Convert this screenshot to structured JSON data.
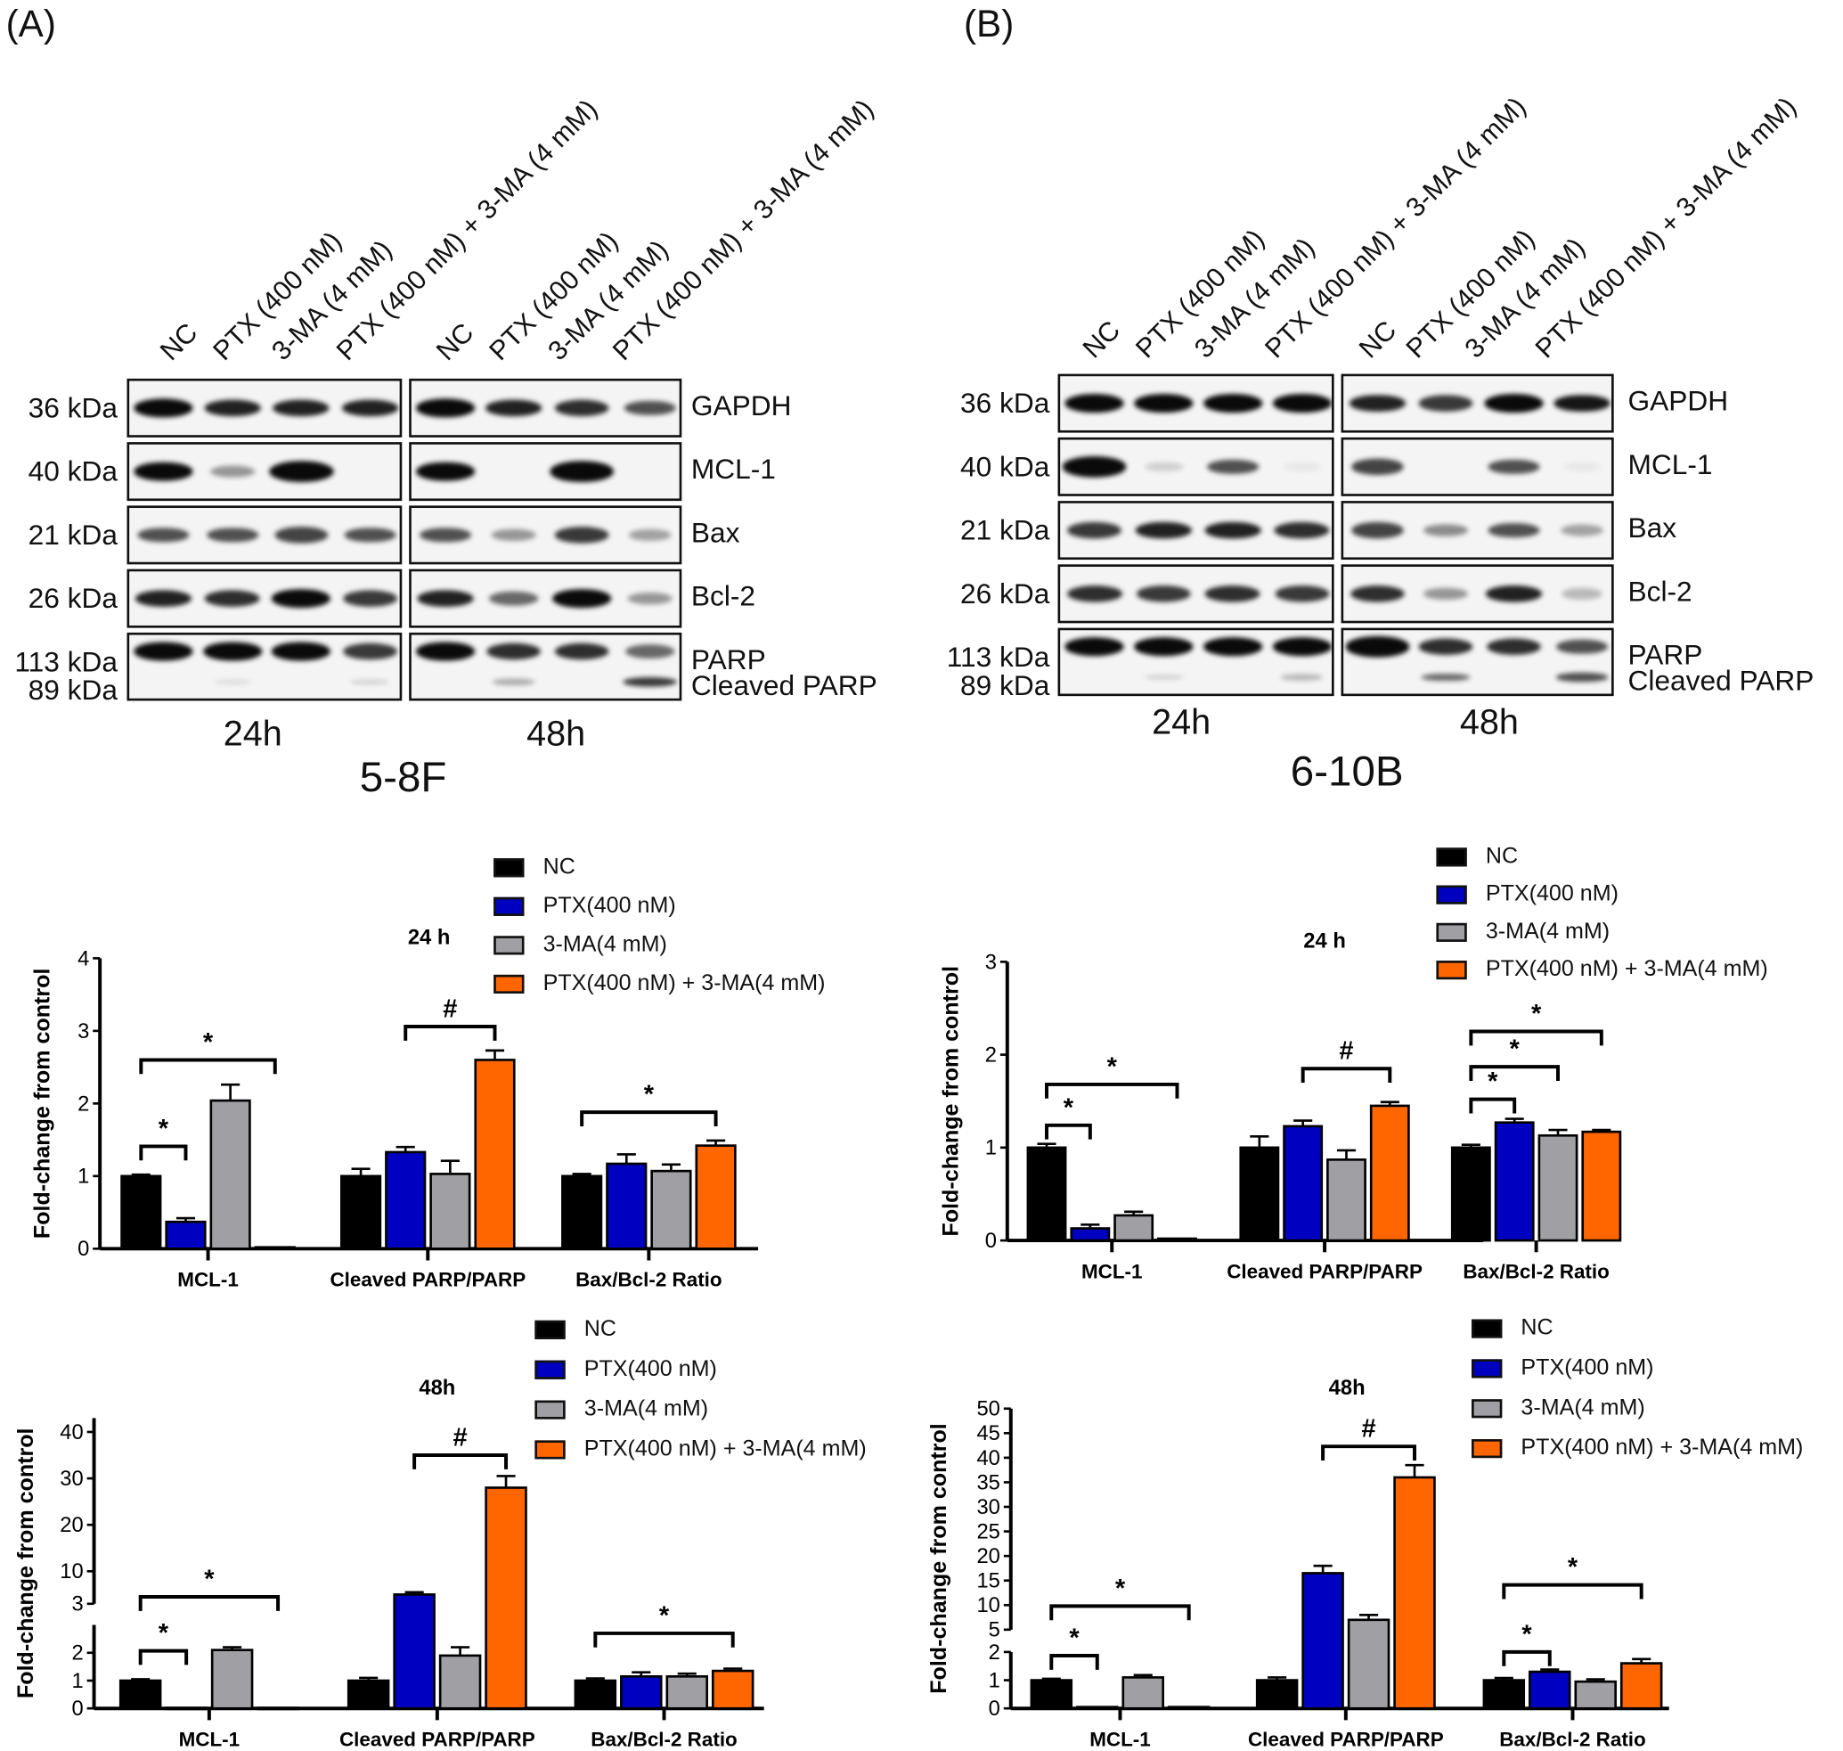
{
  "panels": [
    {
      "label": "(A)",
      "cell_line": "5-8F",
      "times": [
        "24h",
        "48h"
      ],
      "lanes": [
        "NC",
        "PTX (400 nM)",
        "3-MA (4 mM)",
        "PTX (400 nM) + 3-MA (4 mM)"
      ],
      "rows": [
        {
          "kda": "36 kDa",
          "protein": "GAPDH",
          "bands": [
            [
              1,
              0.9,
              0.9,
              0.9
            ],
            [
              1,
              0.9,
              0.85,
              0.7
            ]
          ]
        },
        {
          "kda": "40 kDa",
          "protein": "MCL-1",
          "bands": [
            [
              1,
              0.4,
              1.3,
              0
            ],
            [
              1,
              0,
              1.2,
              0
            ]
          ]
        },
        {
          "kda": "21 kDa",
          "protein": "Bax",
          "bands": [
            [
              0.7,
              0.7,
              0.75,
              0.7
            ],
            [
              0.7,
              0.4,
              0.8,
              0.35
            ]
          ]
        },
        {
          "kda": "26 kDa",
          "protein": "Bcl-2",
          "bands": [
            [
              0.9,
              0.85,
              1,
              0.8
            ],
            [
              0.9,
              0.6,
              1,
              0.4
            ]
          ]
        },
        {
          "kda": "113 kDa",
          "protein": "PARP",
          "bands": [
            [
              1,
              1,
              1,
              0.8
            ],
            [
              1,
              0.85,
              0.85,
              0.6
            ]
          ]
        },
        {
          "kda": "89 kDa",
          "protein": "Cleaved PARP",
          "bands": [
            [
              0,
              0.1,
              0,
              0.15
            ],
            [
              0,
              0.3,
              0,
              0.8
            ]
          ]
        }
      ]
    },
    {
      "label": "(B)",
      "cell_line": "6-10B",
      "times": [
        "24h",
        "48h"
      ],
      "lanes": [
        "NC",
        "PTX (400 nM)",
        "3-MA (4 mM)",
        "PTX (400 nM) + 3-MA (4 mM)"
      ],
      "rows": [
        {
          "kda": "36 kDa",
          "protein": "GAPDH",
          "bands": [
            [
              1,
              1,
              1,
              1
            ],
            [
              0.9,
              0.8,
              1,
              0.95
            ]
          ]
        },
        {
          "kda": "40 kDa",
          "protein": "MCL-1",
          "bands": [
            [
              1.2,
              0.15,
              0.7,
              0.05
            ],
            [
              0.75,
              0,
              0.7,
              0.05
            ]
          ]
        },
        {
          "kda": "21 kDa",
          "protein": "Bax",
          "bands": [
            [
              0.8,
              0.9,
              0.9,
              0.85
            ],
            [
              0.75,
              0.45,
              0.7,
              0.35
            ]
          ]
        },
        {
          "kda": "26 kDa",
          "protein": "Bcl-2",
          "bands": [
            [
              0.85,
              0.8,
              0.85,
              0.8
            ],
            [
              0.85,
              0.4,
              0.9,
              0.25
            ]
          ]
        },
        {
          "kda": "113 kDa",
          "protein": "PARP",
          "bands": [
            [
              1,
              1,
              1,
              1
            ],
            [
              1.2,
              0.85,
              0.85,
              0.7
            ]
          ]
        },
        {
          "kda": "89 kDa",
          "protein": "Cleaved PARP",
          "bands": [
            [
              0,
              0.15,
              0,
              0.25
            ],
            [
              0,
              0.6,
              0,
              0.7
            ]
          ]
        }
      ]
    }
  ],
  "colors": {
    "NC": "#000000",
    "PTX": "#0000c0",
    "3MA": "#a0a0a4",
    "combo": "#ff6600"
  },
  "chart_data": [
    {
      "type": "bar",
      "title": "24 h",
      "ylabel": "Fold-change from control",
      "ylim": [
        0,
        4
      ],
      "yticks": [
        0,
        1,
        2,
        3,
        4
      ],
      "categories": [
        "MCL-1",
        "Cleaved PARP/PARP",
        "Bax/Bcl-2 Ratio"
      ],
      "series": [
        {
          "name": "NC",
          "values": [
            1,
            1,
            1
          ],
          "err": [
            0.02,
            0.1,
            0.03
          ]
        },
        {
          "name": "PTX(400 nM)",
          "values": [
            0.37,
            1.33,
            1.17
          ],
          "err": [
            0.05,
            0.07,
            0.13
          ]
        },
        {
          "name": "3-MA(4 mM)",
          "values": [
            2.04,
            1.03,
            1.07
          ],
          "err": [
            0.22,
            0.18,
            0.09
          ]
        },
        {
          "name": "PTX(400 nM) + 3-MA(4 mM)",
          "values": [
            0.02,
            2.6,
            1.42
          ],
          "err": [
            0,
            0.13,
            0.07
          ]
        }
      ],
      "annotations": [
        {
          "group": 0,
          "from": 0,
          "to": 1,
          "y": 1.41,
          "label": "*"
        },
        {
          "group": 0,
          "from": 0,
          "to": 3,
          "y": 2.6,
          "label": "*"
        },
        {
          "group": 1,
          "from": 1,
          "to": 3,
          "y": 3.06,
          "label": "#"
        },
        {
          "group": 2,
          "from": 0,
          "to": 3,
          "y": 1.88,
          "label": "*"
        }
      ],
      "legend": "top-right"
    },
    {
      "type": "bar",
      "title": "24 h",
      "ylabel": "Fold-change from control",
      "ylim": [
        0,
        3
      ],
      "yticks": [
        0,
        1,
        2,
        3
      ],
      "categories": [
        "MCL-1",
        "Cleaved PARP/PARP",
        "Bax/Bcl-2 Ratio"
      ],
      "series": [
        {
          "name": "NC",
          "values": [
            1,
            1,
            1
          ],
          "err": [
            0.04,
            0.12,
            0.03
          ]
        },
        {
          "name": "PTX(400 nM)",
          "values": [
            0.13,
            1.23,
            1.27
          ],
          "err": [
            0.04,
            0.06,
            0.04
          ]
        },
        {
          "name": "3-MA(4 mM)",
          "values": [
            0.27,
            0.87,
            1.13
          ],
          "err": [
            0.04,
            0.1,
            0.06
          ]
        },
        {
          "name": "PTX(400 nM) + 3-MA(4 mM)",
          "values": [
            0.02,
            1.45,
            1.17
          ],
          "err": [
            0,
            0.04,
            0.02
          ]
        }
      ],
      "annotations": [
        {
          "group": 0,
          "from": 0,
          "to": 1,
          "y": 1.24,
          "label": "*"
        },
        {
          "group": 0,
          "from": 0,
          "to": 3,
          "y": 1.68,
          "label": "*"
        },
        {
          "group": 1,
          "from": 1,
          "to": 3,
          "y": 1.85,
          "label": "#"
        },
        {
          "group": 2,
          "from": 0,
          "to": 1,
          "y": 1.52,
          "label": "*"
        },
        {
          "group": 2,
          "from": 0,
          "to": 2,
          "y": 1.87,
          "label": "*"
        },
        {
          "group": 2,
          "from": 0,
          "to": 3,
          "y": 2.25,
          "label": "*"
        }
      ],
      "legend": "top-right"
    },
    {
      "type": "bar",
      "title": "48h",
      "ylabel": "Fold-change from control",
      "ylim": [
        0,
        43
      ],
      "axis_break": [
        3,
        3
      ],
      "yticks": [
        0,
        1,
        2,
        3,
        10,
        20,
        30,
        40
      ],
      "categories": [
        "MCL-1",
        "Cleaved PARP/PARP",
        "Bax/Bcl-2 Ratio"
      ],
      "series": [
        {
          "name": "NC",
          "values": [
            1,
            1,
            1
          ],
          "err": [
            0.05,
            0.1,
            0.08
          ]
        },
        {
          "name": "PTX(400 nM)",
          "values": [
            0.02,
            5,
            1.15
          ],
          "err": [
            0,
            0.5,
            0.15
          ]
        },
        {
          "name": "3-MA(4 mM)",
          "values": [
            2.1,
            1.9,
            1.15
          ],
          "err": [
            0.1,
            0.3,
            0.1
          ]
        },
        {
          "name": "PTX(400 nM) + 3-MA(4 mM)",
          "values": [
            0.02,
            28,
            1.35
          ],
          "err": [
            0,
            2.5,
            0.08
          ]
        }
      ],
      "annotations": [
        {
          "group": 0,
          "from": 0,
          "to": 1,
          "y": 2.07,
          "label": "*"
        },
        {
          "group": 0,
          "from": 0,
          "to": 3,
          "y": 4.5,
          "label": "*"
        },
        {
          "group": 1,
          "from": 1,
          "to": 3,
          "y": 35,
          "label": "#"
        },
        {
          "group": 2,
          "from": 0,
          "to": 3,
          "y": 2.7,
          "label": "*"
        }
      ],
      "legend": "top-right"
    },
    {
      "type": "bar",
      "title": "48h",
      "ylabel": "Fold-change from control",
      "ylim": [
        0,
        50
      ],
      "axis_break": [
        2,
        5
      ],
      "yticks": [
        0,
        1,
        2,
        5,
        10,
        15,
        20,
        25,
        30,
        35,
        40,
        45,
        50
      ],
      "categories": [
        "MCL-1",
        "Cleaved PARP/PARP",
        "Bax/Bcl-2 Ratio"
      ],
      "series": [
        {
          "name": "NC",
          "values": [
            1,
            1,
            1
          ],
          "err": [
            0.05,
            0.1,
            0.08
          ]
        },
        {
          "name": "PTX(400 nM)",
          "values": [
            0.05,
            16.5,
            1.3
          ],
          "err": [
            0,
            1.5,
            0.08
          ]
        },
        {
          "name": "3-MA(4 mM)",
          "values": [
            1.1,
            7,
            0.95
          ],
          "err": [
            0.08,
            1,
            0.08
          ]
        },
        {
          "name": "PTX(400 nM) + 3-MA(4 mM)",
          "values": [
            0.05,
            36,
            1.6
          ],
          "err": [
            0,
            2.5,
            0.15
          ]
        }
      ],
      "annotations": [
        {
          "group": 0,
          "from": 0,
          "to": 1,
          "y": 1.87,
          "label": "*"
        },
        {
          "group": 0,
          "from": 0,
          "to": 3,
          "y": 9.8,
          "label": "*"
        },
        {
          "group": 1,
          "from": 1,
          "to": 3,
          "y": 42.3,
          "label": "#"
        },
        {
          "group": 2,
          "from": 0,
          "to": 1,
          "y": 2.0,
          "label": "*"
        },
        {
          "group": 2,
          "from": 0,
          "to": 3,
          "y": 14.1,
          "label": "*"
        }
      ],
      "legend": "top-right"
    }
  ]
}
